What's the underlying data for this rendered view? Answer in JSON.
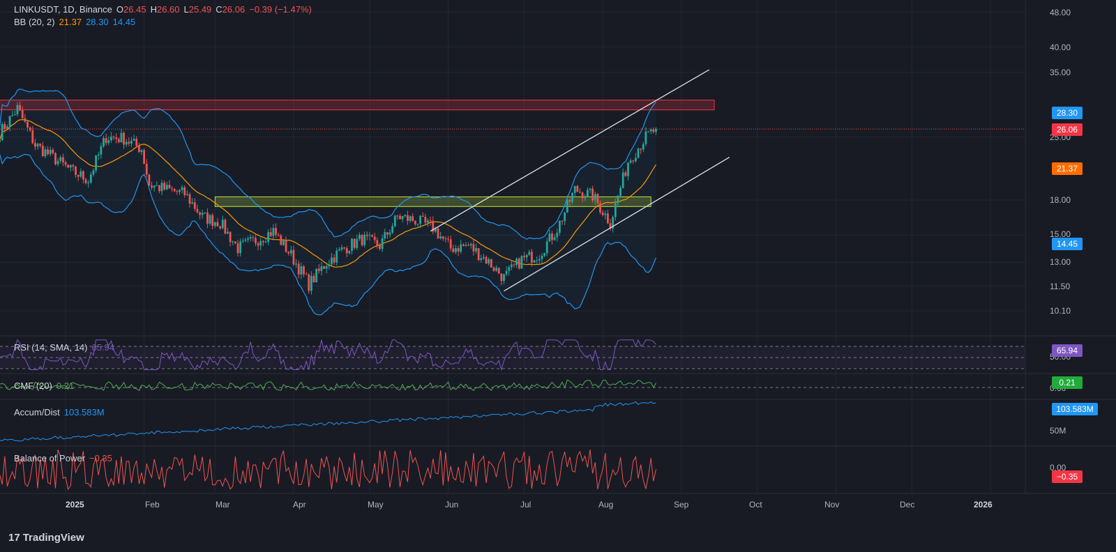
{
  "header": {
    "symbol": "LINKUSDT, 1D, Binance",
    "o_label": "O",
    "o": "26.45",
    "h_label": "H",
    "h": "26.60",
    "l_label": "L",
    "l": "25.49",
    "c_label": "C",
    "c": "26.06",
    "change": "−0.39 (−1.47%)",
    "bb_label": "BB (20, 2)",
    "bb_basis": "21.37",
    "bb_upper": "28.30",
    "bb_lower": "14.45"
  },
  "indicators": {
    "rsi": {
      "label": "RSI (14, SMA, 14)",
      "value": "65.94",
      "axis": "50.00"
    },
    "cmf": {
      "label": "CMF (20)",
      "value": "0.21",
      "axis": "0.00"
    },
    "ad": {
      "label": "Accum/Dist",
      "value": "103.583M",
      "axis": "50M"
    },
    "bop": {
      "label": "Balance of Power",
      "value": "−0.35",
      "axis": "0.00"
    }
  },
  "price_axis": [
    "48.00",
    "40.00",
    "35.00",
    "25.00",
    "18.00",
    "15.00",
    "13.00",
    "11.50",
    "10.10"
  ],
  "price_labels": {
    "upper": "28.30",
    "last": "26.06",
    "basis": "21.37",
    "lower": "14.45"
  },
  "time_axis": [
    "2025",
    "Feb",
    "Mar",
    "Apr",
    "May",
    "Jun",
    "Jul",
    "Aug",
    "Sep",
    "Oct",
    "Nov",
    "Dec",
    "2026"
  ],
  "brand": "TradingView",
  "colors": {
    "background": "#181b24",
    "up": "#26a69a",
    "down": "#ef5350",
    "bb_band": "#2196f3",
    "bb_basis": "#ff9800",
    "rsi": "#7e57c2",
    "cmf": "#4caf50",
    "ad": "#2196f3",
    "bop": "#ef5350",
    "resistance_zone": "#f23645",
    "support_zone": "#c4e538",
    "trend": "#e0e3eb"
  },
  "chart_data": {
    "type": "candlestick",
    "title": "LINKUSDT, 1D, Binance",
    "y_scale": "log",
    "ylim": [
      9.5,
      50
    ],
    "x_range": [
      "2024-12-06",
      "2026-01-31"
    ],
    "grid": true,
    "ohlc_last": {
      "open": 26.45,
      "high": 26.6,
      "low": 25.49,
      "close": 26.06
    },
    "closes_weekly": [
      {
        "date": "2024-12-06",
        "close": 25.5
      },
      {
        "date": "2024-12-13",
        "close": 29.0
      },
      {
        "date": "2024-12-20",
        "close": 24.0
      },
      {
        "date": "2024-12-27",
        "close": 22.5
      },
      {
        "date": "2025-01-03",
        "close": 21.0
      },
      {
        "date": "2025-01-10",
        "close": 20.0
      },
      {
        "date": "2025-01-17",
        "close": 25.0
      },
      {
        "date": "2025-01-24",
        "close": 24.8
      },
      {
        "date": "2025-01-31",
        "close": 23.5
      },
      {
        "date": "2025-02-03",
        "close": 19.5
      },
      {
        "date": "2025-02-10",
        "close": 19.0
      },
      {
        "date": "2025-02-17",
        "close": 18.6
      },
      {
        "date": "2025-02-24",
        "close": 16.5
      },
      {
        "date": "2025-03-03",
        "close": 16.0
      },
      {
        "date": "2025-03-10",
        "close": 14.0
      },
      {
        "date": "2025-03-17",
        "close": 14.6
      },
      {
        "date": "2025-03-24",
        "close": 15.3
      },
      {
        "date": "2025-03-31",
        "close": 13.5
      },
      {
        "date": "2025-04-07",
        "close": 11.6
      },
      {
        "date": "2025-04-14",
        "close": 13.0
      },
      {
        "date": "2025-04-21",
        "close": 14.0
      },
      {
        "date": "2025-04-28",
        "close": 14.7
      },
      {
        "date": "2025-05-05",
        "close": 14.2
      },
      {
        "date": "2025-05-12",
        "close": 16.5
      },
      {
        "date": "2025-05-19",
        "close": 16.2
      },
      {
        "date": "2025-05-26",
        "close": 15.6
      },
      {
        "date": "2025-06-02",
        "close": 14.0
      },
      {
        "date": "2025-06-09",
        "close": 14.2
      },
      {
        "date": "2025-06-16",
        "close": 13.2
      },
      {
        "date": "2025-06-23",
        "close": 12.0
      },
      {
        "date": "2025-06-30",
        "close": 13.2
      },
      {
        "date": "2025-07-07",
        "close": 13.6
      },
      {
        "date": "2025-07-14",
        "close": 15.5
      },
      {
        "date": "2025-07-21",
        "close": 19.0
      },
      {
        "date": "2025-07-28",
        "close": 18.4
      },
      {
        "date": "2025-08-04",
        "close": 16.0
      },
      {
        "date": "2025-08-11",
        "close": 22.0
      },
      {
        "date": "2025-08-18",
        "close": 25.0
      },
      {
        "date": "2025-08-22",
        "close": 26.06
      }
    ],
    "bollinger": {
      "params": "20, 2",
      "last": {
        "basis": 21.37,
        "upper": 28.3,
        "lower": 14.45
      }
    },
    "zones": [
      {
        "name": "resistance",
        "low": 28.8,
        "high": 30.3,
        "from": "2024-12-06",
        "to": "2025-09-14"
      },
      {
        "name": "support",
        "low": 17.4,
        "high": 18.3,
        "from": "2025-03-01",
        "to": "2025-08-20"
      }
    ],
    "trendlines": [
      {
        "from": {
          "date": "2025-05-25",
          "y": 15.3
        },
        "to": {
          "date": "2025-09-12",
          "y": 35.5
        }
      },
      {
        "from": {
          "date": "2025-06-23",
          "y": 11.2
        },
        "to": {
          "date": "2025-09-20",
          "y": 22.5
        }
      }
    ]
  }
}
